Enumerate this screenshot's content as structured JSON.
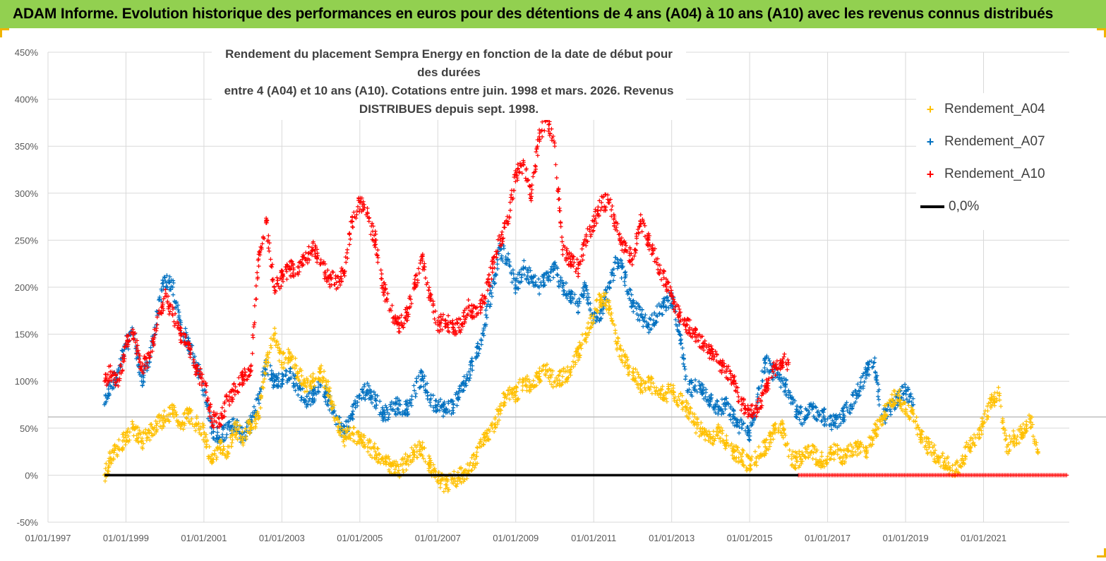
{
  "banner": {
    "title": "ADAM Informe. Evolution historique des performances en euros pour des détentions de 4 ans (A04) à 10 ans (A10) avec les revenus connus distribués",
    "color": "#92d050"
  },
  "chart_data": {
    "type": "scatter",
    "title_line1": "Rendement du placement Sempra Energy en fonction de la date de début pour des durées",
    "title_line2": "entre 4 (A04) et 10 ans (A10). Cotations entre juin. 1998 et mars. 2026. Revenus DISTRIBUES depuis sept. 1998.",
    "xlabel": "",
    "ylabel": "",
    "xlim": [
      1997.0,
      2023.2
    ],
    "ylim": [
      -50,
      450
    ],
    "x_ticks": [
      1997,
      1999,
      2001,
      2003,
      2005,
      2007,
      2009,
      2011,
      2013,
      2015,
      2017,
      2019,
      2021
    ],
    "x_tick_labels": [
      "01/01/1997",
      "01/01/1999",
      "01/01/2001",
      "01/01/2003",
      "01/01/2005",
      "01/01/2007",
      "01/01/2009",
      "01/01/2011",
      "01/01/2013",
      "01/01/2015",
      "01/01/2017",
      "01/01/2019",
      "01/01/2021"
    ],
    "y_ticks": [
      -50,
      0,
      50,
      100,
      150,
      200,
      250,
      300,
      350,
      400,
      450
    ],
    "y_tick_labels": [
      "-50%",
      "0%",
      "50%",
      "100%",
      "150%",
      "200%",
      "250%",
      "300%",
      "350%",
      "400%",
      "450%"
    ],
    "grid": true,
    "reference_line_y": 62,
    "legend_position": "top-right",
    "series": [
      {
        "name": "Rendement_A04",
        "label": "Rendement_A04",
        "marker": "+",
        "color": "#ffc000",
        "x": [
          1998.45,
          1998.6,
          1998.8,
          1999.0,
          1999.2,
          1999.4,
          1999.6,
          1999.8,
          2000.0,
          2000.2,
          2000.4,
          2000.6,
          2000.8,
          2001.0,
          2001.2,
          2001.4,
          2001.6,
          2001.8,
          2002.0,
          2002.2,
          2002.4,
          2002.6,
          2002.8,
          2003.0,
          2003.2,
          2003.4,
          2003.6,
          2003.8,
          2004.0,
          2004.2,
          2004.4,
          2004.6,
          2004.8,
          2005.0,
          2005.2,
          2005.4,
          2005.6,
          2005.8,
          2006.0,
          2006.2,
          2006.4,
          2006.6,
          2006.8,
          2007.0,
          2007.2,
          2007.4,
          2007.6,
          2007.8,
          2008.0,
          2008.2,
          2008.4,
          2008.6,
          2008.8,
          2009.0,
          2009.2,
          2009.4,
          2009.6,
          2009.8,
          2010.0,
          2010.2,
          2010.4,
          2010.6,
          2010.8,
          2011.0,
          2011.2,
          2011.4,
          2011.6,
          2011.8,
          2012.0,
          2012.2,
          2012.4,
          2012.6,
          2012.8,
          2013.0,
          2013.2,
          2013.4,
          2013.6,
          2013.8,
          2014.0,
          2014.2,
          2014.4,
          2014.6,
          2014.8,
          2015.0,
          2015.2,
          2015.4,
          2015.6,
          2015.8,
          2016.0,
          2016.2,
          2016.4,
          2016.6,
          2016.8,
          2017.0,
          2017.2,
          2017.4,
          2017.6,
          2017.8,
          2018.0,
          2018.2,
          2018.4,
          2018.6,
          2018.8,
          2019.0,
          2019.2,
          2019.4,
          2019.6,
          2019.8,
          2020.0,
          2020.2,
          2020.4,
          2020.6,
          2020.8,
          2021.0,
          2021.2,
          2021.4,
          2021.6,
          2021.8,
          2022.0,
          2022.2,
          2022.4
        ],
        "values": [
          0,
          18,
          28,
          40,
          50,
          35,
          45,
          55,
          60,
          70,
          50,
          65,
          55,
          45,
          15,
          30,
          25,
          50,
          40,
          55,
          60,
          120,
          150,
          120,
          130,
          110,
          95,
          100,
          110,
          90,
          60,
          40,
          45,
          40,
          30,
          25,
          15,
          10,
          5,
          15,
          25,
          30,
          10,
          -5,
          -10,
          -5,
          0,
          5,
          20,
          40,
          50,
          70,
          90,
          85,
          100,
          95,
          105,
          110,
          100,
          105,
          110,
          130,
          150,
          170,
          190,
          180,
          140,
          120,
          110,
          95,
          100,
          90,
          85,
          90,
          80,
          70,
          55,
          45,
          40,
          45,
          35,
          25,
          20,
          10,
          20,
          30,
          45,
          55,
          20,
          15,
          20,
          25,
          15,
          20,
          25,
          20,
          25,
          30,
          25,
          45,
          60,
          80,
          85,
          70,
          65,
          40,
          30,
          20,
          15,
          5,
          10,
          30,
          40,
          55,
          80,
          85,
          30,
          40,
          45,
          60,
          25
        ]
      },
      {
        "name": "Rendement_A07",
        "label": "Rendement_A07",
        "marker": "+",
        "color": "#0070c0",
        "x": [
          1998.45,
          1998.6,
          1998.8,
          1999.0,
          1999.2,
          1999.4,
          1999.6,
          1999.8,
          2000.0,
          2000.2,
          2000.4,
          2000.6,
          2000.8,
          2001.0,
          2001.2,
          2001.4,
          2001.6,
          2001.8,
          2002.0,
          2002.2,
          2002.4,
          2002.6,
          2002.8,
          2003.0,
          2003.2,
          2003.4,
          2003.6,
          2003.8,
          2004.0,
          2004.2,
          2004.4,
          2004.6,
          2004.8,
          2005.0,
          2005.2,
          2005.4,
          2005.6,
          2005.8,
          2006.0,
          2006.2,
          2006.4,
          2006.6,
          2006.8,
          2007.0,
          2007.2,
          2007.4,
          2007.6,
          2007.8,
          2008.0,
          2008.2,
          2008.4,
          2008.6,
          2008.8,
          2009.0,
          2009.2,
          2009.4,
          2009.6,
          2009.8,
          2010.0,
          2010.2,
          2010.4,
          2010.6,
          2010.8,
          2011.0,
          2011.2,
          2011.4,
          2011.6,
          2011.8,
          2012.0,
          2012.2,
          2012.4,
          2012.6,
          2012.8,
          2013.0,
          2013.2,
          2013.4,
          2013.6,
          2013.8,
          2014.0,
          2014.2,
          2014.4,
          2014.6,
          2014.8,
          2015.0,
          2015.2,
          2015.4,
          2015.6,
          2015.8,
          2016.0,
          2016.2,
          2016.4,
          2016.6,
          2016.8,
          2017.0,
          2017.2,
          2017.4,
          2017.6,
          2017.8,
          2018.0,
          2018.2,
          2018.4,
          2018.6,
          2018.8,
          2019.0,
          2019.2
        ],
        "values": [
          75,
          95,
          110,
          140,
          150,
          100,
          120,
          170,
          210,
          200,
          160,
          140,
          120,
          90,
          50,
          40,
          50,
          55,
          40,
          55,
          80,
          120,
          100,
          100,
          110,
          95,
          80,
          85,
          95,
          80,
          60,
          45,
          65,
          85,
          90,
          80,
          65,
          70,
          75,
          70,
          90,
          105,
          80,
          75,
          70,
          75,
          90,
          110,
          130,
          160,
          200,
          240,
          230,
          200,
          220,
          210,
          200,
          210,
          220,
          200,
          190,
          180,
          200,
          165,
          175,
          200,
          230,
          210,
          180,
          170,
          160,
          170,
          180,
          190,
          150,
          90,
          95,
          90,
          80,
          70,
          75,
          60,
          50,
          45,
          80,
          120,
          110,
          100,
          90,
          70,
          60,
          70,
          65,
          60,
          55,
          65,
          75,
          90,
          110,
          120,
          60,
          70,
          80,
          90,
          75
        ]
      },
      {
        "name": "Rendement_A10",
        "label": "Rendement_A10",
        "marker": "+",
        "color": "#ff0000",
        "x": [
          1998.45,
          1998.6,
          1998.8,
          1999.0,
          1999.2,
          1999.4,
          1999.6,
          1999.8,
          2000.0,
          2000.2,
          2000.4,
          2000.6,
          2000.8,
          2001.0,
          2001.2,
          2001.4,
          2001.6,
          2001.8,
          2002.0,
          2002.2,
          2002.4,
          2002.6,
          2002.8,
          2003.0,
          2003.2,
          2003.4,
          2003.6,
          2003.8,
          2004.0,
          2004.2,
          2004.4,
          2004.6,
          2004.8,
          2005.0,
          2005.2,
          2005.4,
          2005.6,
          2005.8,
          2006.0,
          2006.2,
          2006.4,
          2006.6,
          2006.8,
          2007.0,
          2007.2,
          2007.4,
          2007.6,
          2007.8,
          2008.0,
          2008.2,
          2008.4,
          2008.6,
          2008.8,
          2009.0,
          2009.2,
          2009.4,
          2009.6,
          2009.8,
          2010.0,
          2010.2,
          2010.4,
          2010.6,
          2010.8,
          2011.0,
          2011.2,
          2011.4,
          2011.6,
          2011.8,
          2012.0,
          2012.2,
          2012.4,
          2012.6,
          2012.8,
          2013.0,
          2013.2,
          2013.4,
          2013.6,
          2013.8,
          2014.0,
          2014.2,
          2014.4,
          2014.6,
          2014.8,
          2015.0,
          2015.2,
          2015.4,
          2015.6,
          2015.8,
          2016.0
        ],
        "values": [
          100,
          110,
          95,
          140,
          150,
          115,
          125,
          160,
          190,
          170,
          150,
          140,
          110,
          100,
          60,
          55,
          80,
          90,
          105,
          110,
          230,
          270,
          200,
          210,
          220,
          215,
          230,
          240,
          225,
          210,
          205,
          215,
          270,
          290,
          275,
          250,
          200,
          175,
          160,
          170,
          200,
          230,
          190,
          160,
          165,
          155,
          160,
          180,
          170,
          190,
          220,
          250,
          270,
          320,
          330,
          300,
          360,
          380,
          350,
          240,
          230,
          220,
          250,
          270,
          290,
          290,
          260,
          240,
          230,
          270,
          250,
          230,
          210,
          190,
          170,
          160,
          150,
          140,
          130,
          120,
          110,
          100,
          75,
          65,
          70,
          90,
          110,
          120,
          120
        ]
      }
    ],
    "tail_zero": {
      "x_start": 2016.25,
      "x_end": 2023.15,
      "value": 0,
      "color": "#ff0000"
    },
    "zero_line": {
      "name": "0,0%",
      "label": "0,0%",
      "color": "#000000",
      "x_start": 1998.45,
      "x_end": 2016.25,
      "value": 0
    }
  }
}
